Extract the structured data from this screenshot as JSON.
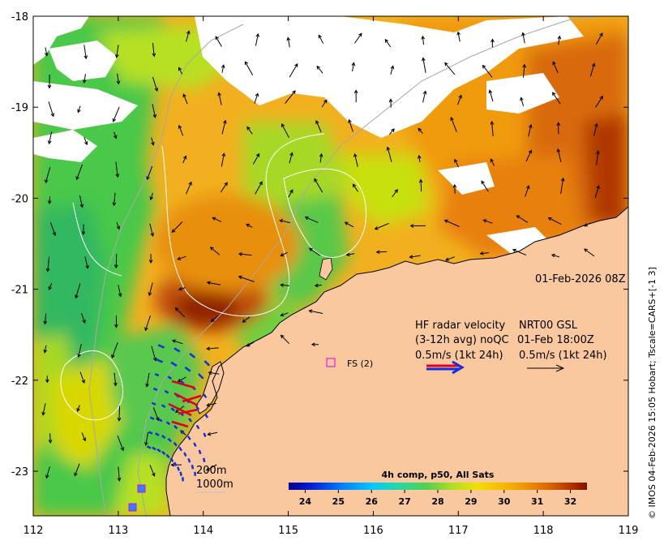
{
  "map": {
    "x_ticks": [
      "112",
      "113",
      "114",
      "115",
      "116",
      "117",
      "118",
      "119"
    ],
    "y_ticks": [
      "-18",
      "-19",
      "-20",
      "-21",
      "-22",
      "-23"
    ],
    "datetime_label": "01-Feb-2026 08Z",
    "credit": "© IMOS 04-Feb-2026 15:05 Hobart; Tscale=CARS+[-1 3]",
    "site_label": "FS (2)",
    "depth_labels": [
      "200m",
      "1000m"
    ]
  },
  "legend": {
    "line1_left": "HF radar velocity",
    "line1_right": "NRT00 GSL",
    "line2_left": "(3-12h avg) noQC",
    "line2_right": "01-Feb 18:00Z",
    "line3_left": "0.5m/s (1kt 24h)",
    "line3_right": "0.5m/s (1kt 24h)",
    "radar_arrow_colors": [
      "#e0001b",
      "#1030e0"
    ],
    "gsl_arrow_color": "#000000"
  },
  "colorbar": {
    "title": "4h comp, p50, All Sats",
    "ticks": [
      "24",
      "25",
      "26",
      "27",
      "28",
      "29",
      "30",
      "31",
      "32"
    ],
    "range": [
      23.5,
      32.5
    ],
    "palette": [
      "#00008f",
      "#0020d8",
      "#0080ff",
      "#00c8ff",
      "#20d8b0",
      "#50d050",
      "#b8e020",
      "#f0e000",
      "#f8b800",
      "#f09000",
      "#d86000",
      "#b03000",
      "#801000"
    ]
  },
  "colors": {
    "land": "#f9c89f",
    "radar_red": "#e0001b",
    "radar_blue": "#1030e0",
    "site_marker": "#e000e0",
    "station_marker": "#3080ff"
  }
}
